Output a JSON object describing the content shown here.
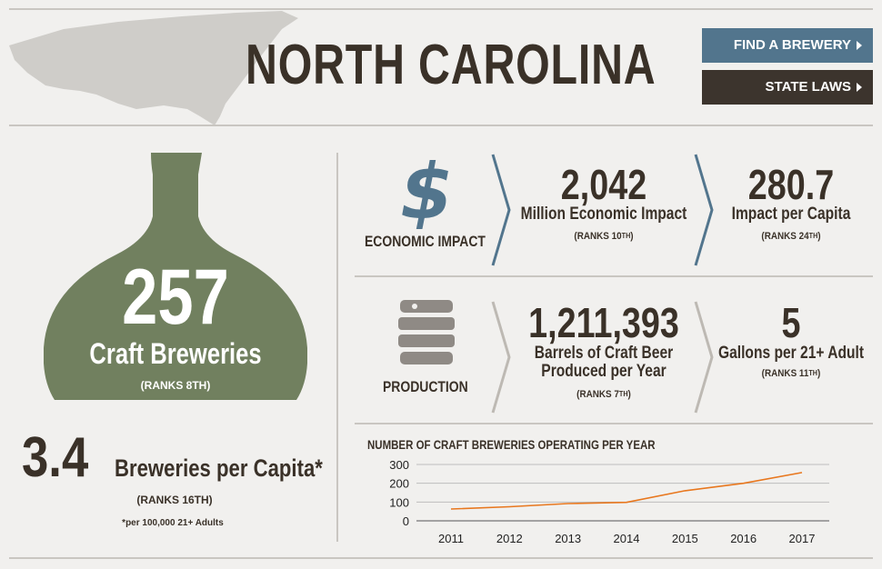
{
  "header": {
    "state_name": "NORTH CAROLINA",
    "find_button": "FIND A BREWERY",
    "laws_button": "STATE LAWS"
  },
  "breweries": {
    "count": "257",
    "label": "Craft Breweries",
    "rank": "(RANKS 8TH)"
  },
  "per_capita": {
    "value": "3.4",
    "label": "Breweries per Capita*",
    "rank": "(RANKS 16TH)",
    "note": "*per 100,000 21+ Adults"
  },
  "economic": {
    "section_label": "ECONOMIC IMPACT",
    "icon": "dollar-icon",
    "impact_value": "2,042",
    "impact_label": "Million Economic Impact",
    "impact_rank": "(RANKS 10",
    "impact_rank_suffix": "TH",
    "per_capita_value": "280.7",
    "per_capita_label": "Impact per Capita",
    "per_capita_rank": "(RANKS 24",
    "per_capita_rank_suffix": "TH"
  },
  "production": {
    "section_label": "PRODUCTION",
    "icon": "barrel-icon",
    "barrels_value": "1,211,393",
    "barrels_label_1": "Barrels of Craft Beer",
    "barrels_label_2": "Produced per Year",
    "barrels_rank": "(RANKS 7",
    "barrels_rank_suffix": "TH",
    "gallons_value": "5",
    "gallons_label": "Gallons per 21+ Adult",
    "gallons_rank": "(RANKS 11",
    "gallons_rank_suffix": "TH"
  },
  "colors": {
    "accent_blue": "#52758d",
    "dark_brown": "#3c342d",
    "bottle_green": "#71805f",
    "line_orange": "#e8771e"
  },
  "chart_data": {
    "type": "line",
    "title": "NUMBER OF CRAFT BREWERIES OPERATING PER YEAR",
    "x": [
      "2011",
      "2012",
      "2013",
      "2014",
      "2015",
      "2016",
      "2017"
    ],
    "series": [
      {
        "values": [
          63,
          75,
          92,
          98,
          160,
          200,
          257
        ]
      }
    ],
    "y_ticks": [
      0,
      100,
      200,
      300
    ],
    "ylim": [
      0,
      300
    ],
    "grid": true
  }
}
